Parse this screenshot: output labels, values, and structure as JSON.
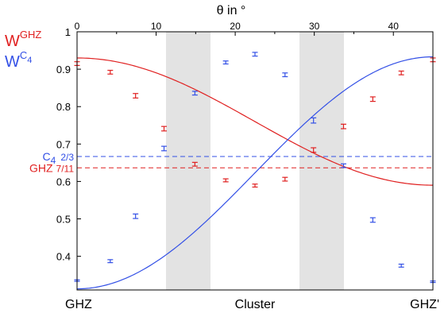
{
  "chart_data": {
    "type": "line",
    "title": "",
    "top_axis": {
      "label": "θ in °",
      "range": [
        0,
        45
      ],
      "ticks": [
        0,
        10,
        20,
        30,
        40
      ],
      "tick_labels": [
        "0",
        "10",
        "20",
        "30",
        "40"
      ]
    },
    "bottom_axis": {
      "labels": [
        "GHZ",
        "Cluster",
        "GHZ'"
      ],
      "positions_deg": [
        0,
        22.5,
        45
      ]
    },
    "left_axis": {
      "range": [
        0.31,
        1.0
      ],
      "ticks": [
        0.4,
        0.5,
        0.6,
        0.7,
        0.8,
        0.9,
        1.0
      ],
      "tick_labels": [
        "0.4",
        "0.5",
        "0.6",
        "0.7",
        "0.8",
        "0.9",
        "1"
      ]
    },
    "shaded_regions": [
      [
        11.25,
        16.875
      ],
      [
        28.125,
        33.75
      ]
    ],
    "reference_lines": [
      {
        "series": "C4",
        "prefix": "C",
        "subscript": "4",
        "value_label": "2/3",
        "value": 0.6667,
        "color": "#3350e6"
      },
      {
        "series": "GHZ",
        "prefix": "GHZ",
        "subscript": "",
        "value_label": "7/11",
        "value": 0.6364,
        "color": "#e02020"
      }
    ],
    "series": [
      {
        "name": "GHZ",
        "legend_base": "W",
        "legend_sup": "GHZ",
        "color": "#e02020",
        "curve_min": 0.59,
        "curve_max": 0.93,
        "x": [
          0,
          4.2,
          7.4,
          11,
          14.9,
          18.8,
          22.5,
          26.3,
          29.9,
          33.7,
          37.4,
          41,
          45
        ],
        "values": [
          0.915,
          0.892,
          0.829,
          0.741,
          0.646,
          0.603,
          0.589,
          0.606,
          0.684,
          0.747,
          0.82,
          0.89,
          0.925
        ],
        "errors": [
          0.005,
          0.005,
          0.006,
          0.006,
          0.005,
          0.004,
          0.004,
          0.005,
          0.006,
          0.006,
          0.006,
          0.005,
          0.005
        ]
      },
      {
        "name": "C4",
        "legend_base": "W",
        "legend_sup": "C",
        "legend_sup_sub": "4",
        "color": "#3350e6",
        "curve_min": 0.313,
        "curve_max": 0.933,
        "x": [
          0,
          4.2,
          7.4,
          11,
          14.9,
          18.8,
          22.5,
          26.3,
          29.9,
          33.7,
          37.4,
          41,
          45
        ],
        "values": [
          0.335,
          0.387,
          0.507,
          0.688,
          0.836,
          0.918,
          0.94,
          0.885,
          0.763,
          0.642,
          0.497,
          0.375,
          0.332
        ],
        "errors": [
          0.002,
          0.004,
          0.006,
          0.006,
          0.005,
          0.004,
          0.005,
          0.005,
          0.007,
          0.005,
          0.006,
          0.004,
          0.002
        ]
      }
    ]
  }
}
